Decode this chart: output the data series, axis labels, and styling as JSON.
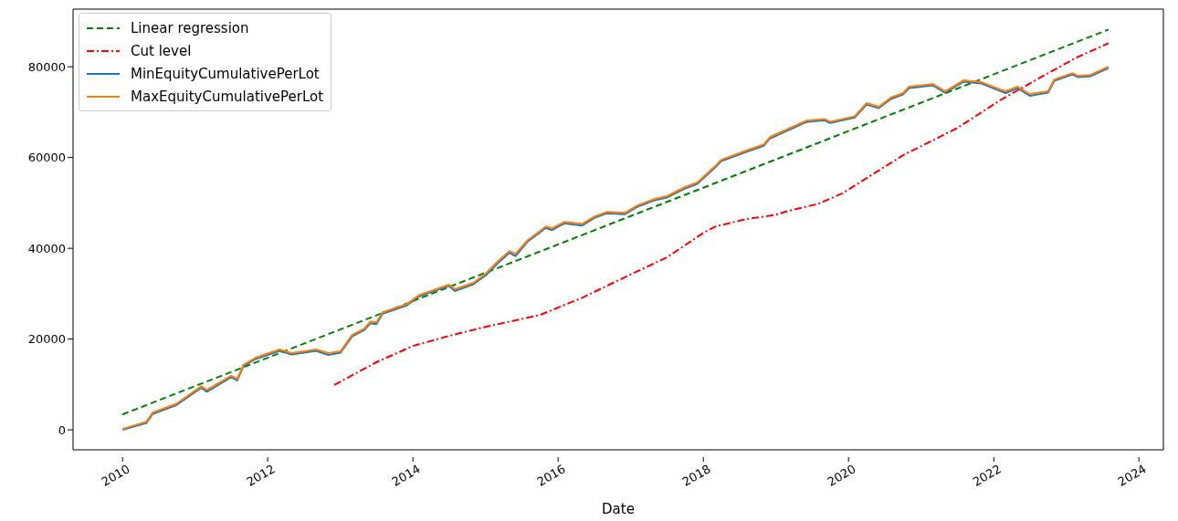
{
  "chart_data": {
    "type": "line",
    "xlabel": "Date",
    "legend": "top left",
    "grid": false,
    "xlim": [
      "2009-04-27",
      "2024-05-03"
    ],
    "xticks": [
      "2010",
      "2012",
      "2014",
      "2016",
      "2018",
      "2020",
      "2022",
      "2024"
    ],
    "ylim": [
      -4400,
      92700
    ],
    "yticks": [
      0,
      20000,
      40000,
      60000,
      80000
    ],
    "x": [
      "2010-01",
      "2010-05",
      "2010-06",
      "2010-10",
      "2011-02",
      "2011-03",
      "2011-07",
      "2011-08",
      "2011-09",
      "2011-11",
      "2012-03",
      "2012-05",
      "2012-09",
      "2012-11",
      "2013-01",
      "2013-03",
      "2013-05",
      "2013-06",
      "2013-07",
      "2013-08",
      "2013-12",
      "2014-02",
      "2014-07",
      "2014-08",
      "2014-11",
      "2015-01",
      "2015-03",
      "2015-05",
      "2015-06",
      "2015-08",
      "2015-11",
      "2015-12",
      "2016-02",
      "2016-05",
      "2016-07",
      "2016-09",
      "2016-12",
      "2017-02",
      "2017-05",
      "2017-07",
      "2017-10",
      "2017-12",
      "2018-03",
      "2018-04",
      "2018-08",
      "2018-11",
      "2018-12",
      "2019-01",
      "2019-06",
      "2019-09",
      "2019-10",
      "2019-12",
      "2020-02",
      "2020-04",
      "2020-06",
      "2020-08",
      "2020-10",
      "2020-11",
      "2021-03",
      "2021-05",
      "2021-08",
      "2021-11",
      "2022-02",
      "2022-03",
      "2022-05",
      "2022-07",
      "2022-10",
      "2022-11",
      "2023-02",
      "2023-03",
      "2023-05",
      "2023-08"
    ],
    "series": [
      {
        "name": "Linear regression",
        "color": "#008000",
        "line_style": "dashed",
        "x": [
          "2010-01",
          "2023-08"
        ],
        "values": [
          3400,
          88200
        ]
      },
      {
        "name": "Cut level",
        "color": "#ff0000",
        "line_style": "dashdot",
        "x": [
          "2012-12",
          "2013-07",
          "2014-01",
          "2014-07",
          "2015-01",
          "2015-10",
          "2016-05",
          "2016-11",
          "2017-07",
          "2018-01",
          "2018-03",
          "2018-08",
          "2019-01",
          "2019-03",
          "2019-08",
          "2019-12",
          "2020-10",
          "2021-07",
          "2022-02",
          "2022-10",
          "2023-03",
          "2023-08"
        ],
        "values": [
          9900,
          14900,
          18500,
          20700,
          22700,
          25300,
          29100,
          33000,
          38000,
          43400,
          44800,
          46400,
          47400,
          48200,
          49800,
          52100,
          60500,
          66500,
          72600,
          78600,
          82200,
          85200
        ]
      },
      {
        "name": "MinEquityCumulativePerLot",
        "color": "#1f77b4",
        "line_style": "solid",
        "values": [
          0,
          1500,
          3500,
          5500,
          9300,
          8400,
          11600,
          10900,
          14000,
          15600,
          17400,
          16600,
          17400,
          16500,
          17000,
          20600,
          22000,
          23500,
          23300,
          25600,
          27400,
          29400,
          31700,
          30600,
          32100,
          34000,
          36600,
          39000,
          38300,
          41500,
          44500,
          44000,
          45500,
          45000,
          46700,
          47700,
          47500,
          49100,
          50600,
          51200,
          53200,
          54200,
          57800,
          59200,
          61200,
          62600,
          64200,
          64800,
          67800,
          68200,
          67600,
          68200,
          68800,
          71700,
          70900,
          72900,
          73900,
          75300,
          75900,
          74300,
          76700,
          76300,
          74700,
          74200,
          75300,
          73600,
          74300,
          76900,
          78300,
          77700,
          77900,
          79700
        ]
      },
      {
        "name": "MaxEquityCumulativePerLot",
        "color": "#ff7f0e",
        "line_style": "solid",
        "values": [
          200,
          1800,
          3800,
          5800,
          9600,
          8800,
          11900,
          11300,
          14300,
          15900,
          17700,
          16900,
          17700,
          16900,
          17300,
          20900,
          22300,
          23900,
          23700,
          25900,
          27700,
          29700,
          32000,
          31000,
          32400,
          34400,
          37000,
          39400,
          38800,
          41800,
          44800,
          44400,
          45800,
          45400,
          47000,
          48000,
          47800,
          49400,
          50900,
          51500,
          53500,
          54500,
          58100,
          59500,
          61500,
          62900,
          64500,
          65100,
          68100,
          68500,
          67900,
          68500,
          69100,
          72000,
          71200,
          73200,
          74200,
          75600,
          76200,
          74600,
          77000,
          76600,
          75000,
          74600,
          75600,
          74000,
          74600,
          77200,
          78600,
          78000,
          78200,
          80000
        ]
      }
    ]
  }
}
